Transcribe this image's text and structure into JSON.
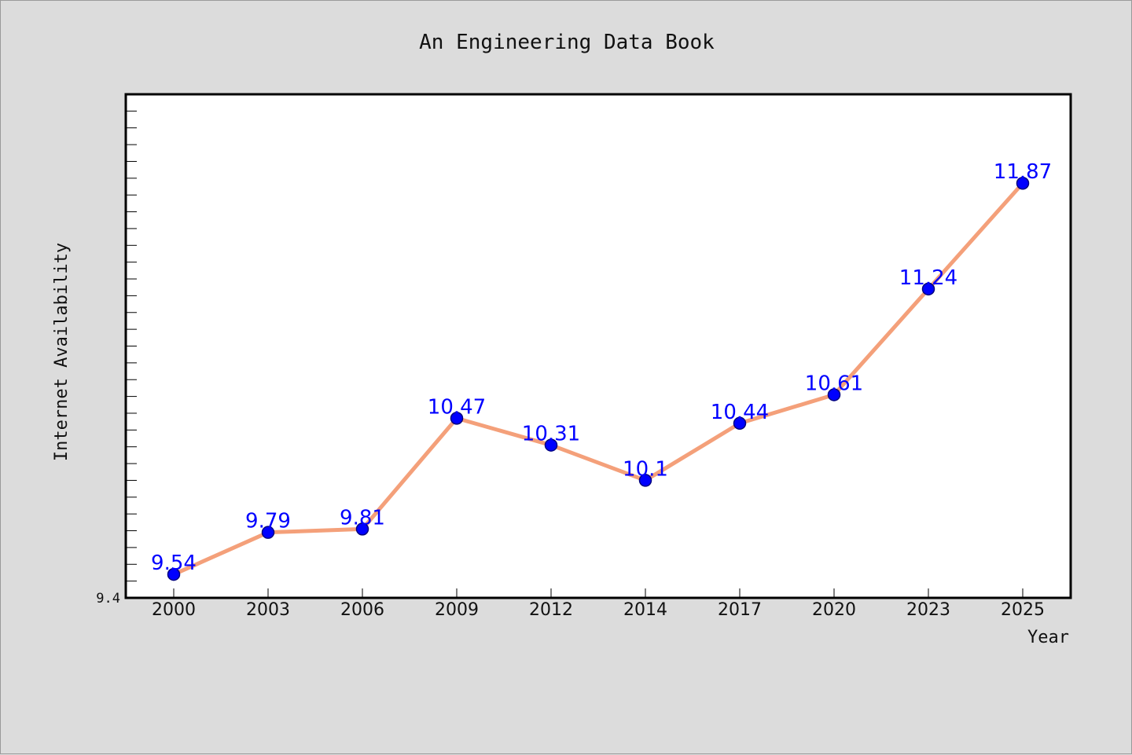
{
  "chart_data": {
    "type": "line",
    "title": "An Engineering Data Book",
    "xlabel": "Year",
    "ylabel": "Internet Availability",
    "categories": [
      "2000",
      "2003",
      "2006",
      "2009",
      "2012",
      "2014",
      "2017",
      "2020",
      "2023",
      "2025"
    ],
    "series": [
      {
        "values": [
          9.54,
          9.79,
          9.81,
          10.47,
          10.31,
          10.1,
          10.44,
          10.61,
          11.24,
          11.87
        ],
        "labels": [
          "9.54",
          "9.79",
          "9.81",
          "10.47",
          "10.31",
          "10.1",
          "10.44",
          "10.61",
          "11.24",
          "11.87"
        ]
      }
    ],
    "ylim": [
      9.4,
      12.4
    ],
    "yticks_labeled": [
      "9.4"
    ],
    "grid": false,
    "legend": "none",
    "colors": {
      "line": "#f4a07a",
      "marker": "#0000ff",
      "marker_edge": "#000080",
      "data_label": "#0000ff",
      "background": "#dcdcdc",
      "plot_background": "#ffffff"
    }
  }
}
